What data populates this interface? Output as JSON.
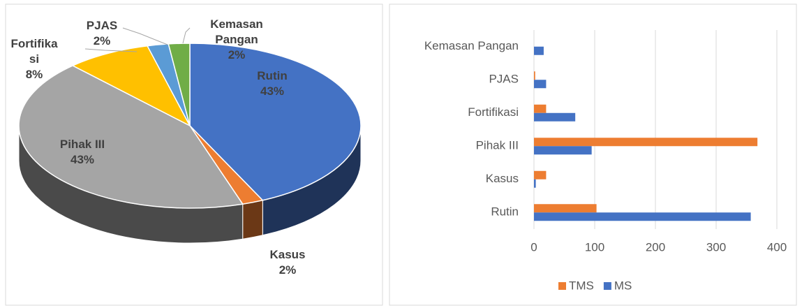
{
  "chart_data": [
    {
      "type": "pie",
      "categories": [
        "Rutin",
        "Kasus",
        "Pihak III",
        "Fortifikasi",
        "PJAS",
        "Kemasan Pangan"
      ],
      "values": [
        43,
        2,
        43,
        8,
        2,
        2
      ],
      "value_labels": [
        "43%",
        "2%",
        "43%",
        "8%",
        "2%",
        "2%"
      ],
      "colors": [
        "#4472c4",
        "#ed7d31",
        "#a5a5a5",
        "#ffc000",
        "#5b9bd5",
        "#70ad47"
      ]
    },
    {
      "type": "bar",
      "orientation": "horizontal",
      "categories": [
        "Rutin",
        "Kasus",
        "Pihak III",
        "Fortifikasi",
        "PJAS",
        "Kemasan Pangan"
      ],
      "series": [
        {
          "name": "TMS",
          "color": "#ed7d31",
          "values": [
            103,
            20,
            368,
            20,
            2,
            0
          ]
        },
        {
          "name": "MS",
          "color": "#4472c4",
          "values": [
            357,
            3,
            95,
            68,
            20,
            16
          ]
        }
      ],
      "xlim": [
        0,
        400
      ],
      "xticks": [
        0,
        100,
        200,
        300,
        400
      ],
      "grid": true,
      "legend": "bottom"
    }
  ]
}
